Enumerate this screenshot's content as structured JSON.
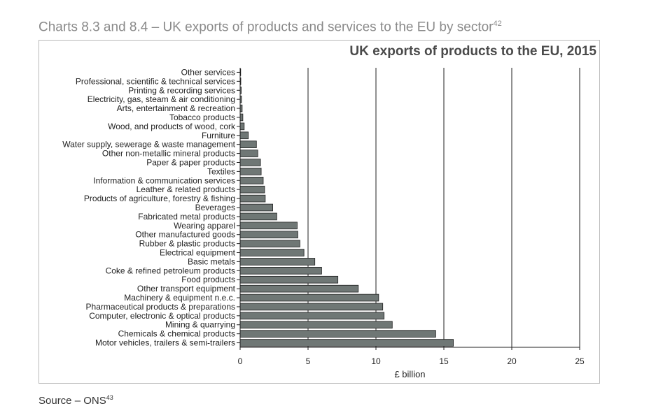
{
  "page": {
    "title": "Charts 8.3 and 8.4 – UK exports of products and services to the EU by sector",
    "title_footnote": "42",
    "source": "Source – ONS",
    "source_footnote": "43"
  },
  "chart_data": {
    "type": "bar",
    "orientation": "horizontal",
    "title": "UK exports of products to the EU, 2015",
    "xlabel": "£ billion",
    "ylabel": "",
    "xlim": [
      0,
      25
    ],
    "xticks": [
      0,
      5,
      10,
      15,
      20,
      25
    ],
    "grid": "vertical",
    "bar_color": "#6f7775",
    "categories": [
      "Other services",
      "Professional, scientific & technical services",
      "Printing & recording services",
      "Electricity, gas, steam & air conditioning",
      "Arts, entertainment & recreation",
      "Tobacco products",
      "Wood, and products of wood, cork",
      "Furniture",
      "Water supply, sewerage & waste management",
      "Other non-metallic mineral products",
      "Paper & paper products",
      "Textiles",
      "Information & communication services",
      "Leather & related products",
      "Products of agriculture, forestry & fishing",
      "Beverages",
      "Fabricated metal products",
      "Wearing apparel",
      "Other manufactured goods",
      "Rubber & plastic products",
      "Electrical equipment",
      "Basic metals",
      "Coke & refined petroleum products",
      "Food products",
      "Other transport equipment",
      "Machinery & equipment n.e.c.",
      "Pharmaceutical products & preparations",
      "Computer, electronic & optical products",
      "Mining & quarrying",
      "Chemicals & chemical products",
      "Motor vehicles, trailers & semi-trailers"
    ],
    "values": [
      0.02,
      0.05,
      0.08,
      0.1,
      0.15,
      0.2,
      0.3,
      0.6,
      1.2,
      1.3,
      1.5,
      1.55,
      1.7,
      1.8,
      1.85,
      2.4,
      2.7,
      4.2,
      4.25,
      4.4,
      4.7,
      5.5,
      6.0,
      7.2,
      8.7,
      10.2,
      10.5,
      10.6,
      11.2,
      14.4,
      15.7
    ]
  }
}
